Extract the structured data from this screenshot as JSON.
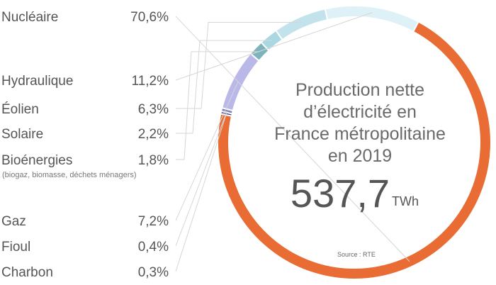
{
  "chart_data": {
    "type": "pie",
    "style": "donut",
    "title": "Production nette d’électricité en France métropolitaine en 2019",
    "title_lines": [
      "Production nette",
      "d’électricité en",
      "France métropolitaine",
      "en 2019"
    ],
    "total": {
      "value": "537,7",
      "unit": "TWh"
    },
    "source": "Source : RTE",
    "slices": [
      {
        "label": "Nucléaire",
        "value": 70.6,
        "display": "70,6%",
        "sublabel": "",
        "color": "#E86C33"
      },
      {
        "label": "Charbon",
        "value": 0.3,
        "display": "0,3%",
        "sublabel": "",
        "color": "#4A4A82"
      },
      {
        "label": "Fioul",
        "value": 0.4,
        "display": "0,4%",
        "sublabel": "",
        "color": "#7D7DBF"
      },
      {
        "label": "Gaz",
        "value": 7.2,
        "display": "7,2%",
        "sublabel": "",
        "color": "#BAB8E8"
      },
      {
        "label": "Bioénergies",
        "value": 1.8,
        "display": "1,8%",
        "sublabel": "(biogaz, biomasse, déchets ménagers)",
        "color": "#7DB3BA"
      },
      {
        "label": "Solaire",
        "value": 2.2,
        "display": "2,2%",
        "sublabel": "",
        "color": "#A9D8E3"
      },
      {
        "label": "Éolien",
        "value": 6.3,
        "display": "6,3%",
        "sublabel": "",
        "color": "#C3E3EC"
      },
      {
        "label": "Hydraulique",
        "value": 11.2,
        "display": "11,2%",
        "sublabel": "",
        "color": "#DDF1F6"
      }
    ],
    "legend_placement": "left"
  }
}
